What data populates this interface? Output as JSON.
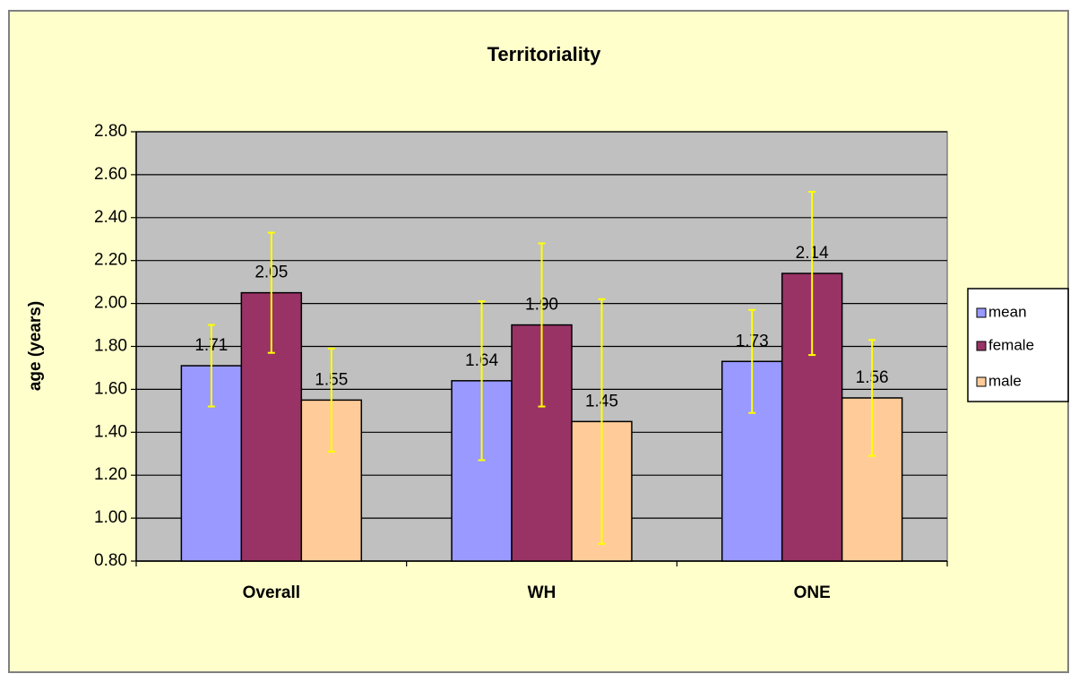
{
  "chart_data": {
    "type": "bar",
    "title": "Territoriality",
    "y_label": "age (years)",
    "categories": [
      "Overall",
      "WH",
      "ONE"
    ],
    "series": [
      {
        "name": "mean",
        "color": "#9999ff",
        "values": [
          1.71,
          1.64,
          1.73
        ],
        "value_labels": [
          "1.71",
          "1.64",
          "1.73"
        ],
        "errors": [
          0.19,
          0.37,
          0.24
        ]
      },
      {
        "name": "female",
        "color": "#993366",
        "values": [
          2.05,
          1.9,
          2.14
        ],
        "value_labels": [
          "2.05",
          "1.90",
          "2.14"
        ],
        "errors": [
          0.28,
          0.38,
          0.38
        ]
      },
      {
        "name": "male",
        "color": "#ffcc99",
        "values": [
          1.55,
          1.45,
          1.56
        ],
        "value_labels": [
          "1.55",
          "1.45",
          "1.56"
        ],
        "errors": [
          0.24,
          0.57,
          0.27
        ]
      }
    ],
    "error_color": "#ffff00",
    "ylim": [
      0.8,
      2.8
    ],
    "yticks": [
      {
        "value": 0.8,
        "label": "0.80"
      },
      {
        "value": 1.0,
        "label": "1.00"
      },
      {
        "value": 1.2,
        "label": "1.20"
      },
      {
        "value": 1.4,
        "label": "1.40"
      },
      {
        "value": 1.6,
        "label": "1.60"
      },
      {
        "value": 1.8,
        "label": "1.80"
      },
      {
        "value": 2.0,
        "label": "2.00"
      },
      {
        "value": 2.2,
        "label": "2.20"
      },
      {
        "value": 2.4,
        "label": "2.40"
      },
      {
        "value": 2.6,
        "label": "2.60"
      },
      {
        "value": 2.8,
        "label": "2.80"
      }
    ],
    "grid": true,
    "legend": "right",
    "plot_background": "#c0c0c0",
    "background": "#ffffcc"
  }
}
